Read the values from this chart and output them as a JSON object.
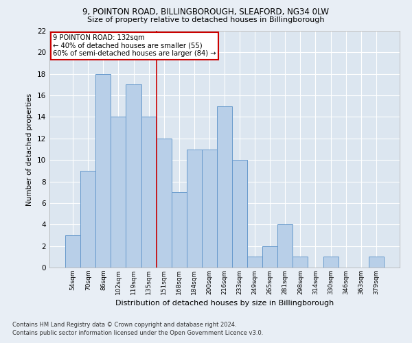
{
  "title1": "9, POINTON ROAD, BILLINGBOROUGH, SLEAFORD, NG34 0LW",
  "title2": "Size of property relative to detached houses in Billingborough",
  "xlabel": "Distribution of detached houses by size in Billingborough",
  "ylabel": "Number of detached properties",
  "categories": [
    "54sqm",
    "70sqm",
    "86sqm",
    "102sqm",
    "119sqm",
    "135sqm",
    "151sqm",
    "168sqm",
    "184sqm",
    "200sqm",
    "216sqm",
    "233sqm",
    "249sqm",
    "265sqm",
    "281sqm",
    "298sqm",
    "314sqm",
    "330sqm",
    "346sqm",
    "363sqm",
    "379sqm"
  ],
  "values": [
    3,
    9,
    18,
    14,
    17,
    14,
    12,
    7,
    11,
    11,
    15,
    10,
    1,
    2,
    4,
    1,
    0,
    1,
    0,
    0,
    1
  ],
  "bar_color": "#b8cfe8",
  "bar_edge_color": "#6699cc",
  "vline_pos": 5.5,
  "vline_color": "#cc0000",
  "annotation_text": "9 POINTON ROAD: 132sqm\n← 40% of detached houses are smaller (55)\n60% of semi-detached houses are larger (84) →",
  "annotation_box_color": "#cc0000",
  "ylim": [
    0,
    22
  ],
  "yticks": [
    0,
    2,
    4,
    6,
    8,
    10,
    12,
    14,
    16,
    18,
    20,
    22
  ],
  "footnote1": "Contains HM Land Registry data © Crown copyright and database right 2024.",
  "footnote2": "Contains public sector information licensed under the Open Government Licence v3.0.",
  "bg_color": "#e8eef5",
  "plot_bg_color": "#dce6f0"
}
